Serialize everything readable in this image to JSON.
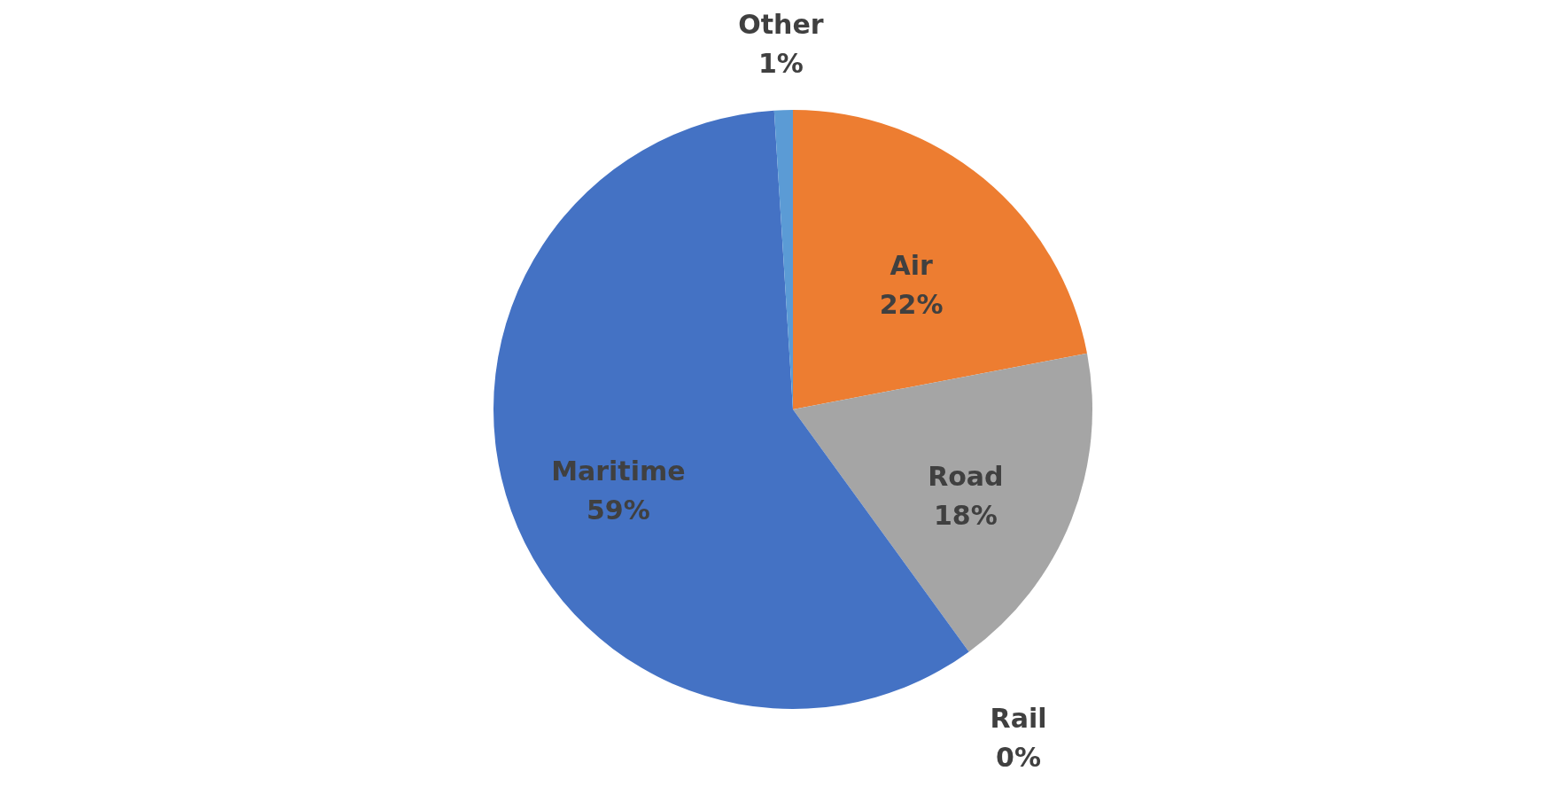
{
  "chart_data": {
    "type": "pie",
    "categories": [
      "Air",
      "Road",
      "Rail",
      "Maritime",
      "Other"
    ],
    "values": [
      22,
      18,
      0,
      59,
      1
    ],
    "colors": [
      "#ed7d31",
      "#a5a5a5",
      "#ffc000",
      "#4472c4",
      "#5b9bd5"
    ],
    "value_labels": [
      "22%",
      "18%",
      "0%",
      "59%",
      "1%"
    ]
  }
}
